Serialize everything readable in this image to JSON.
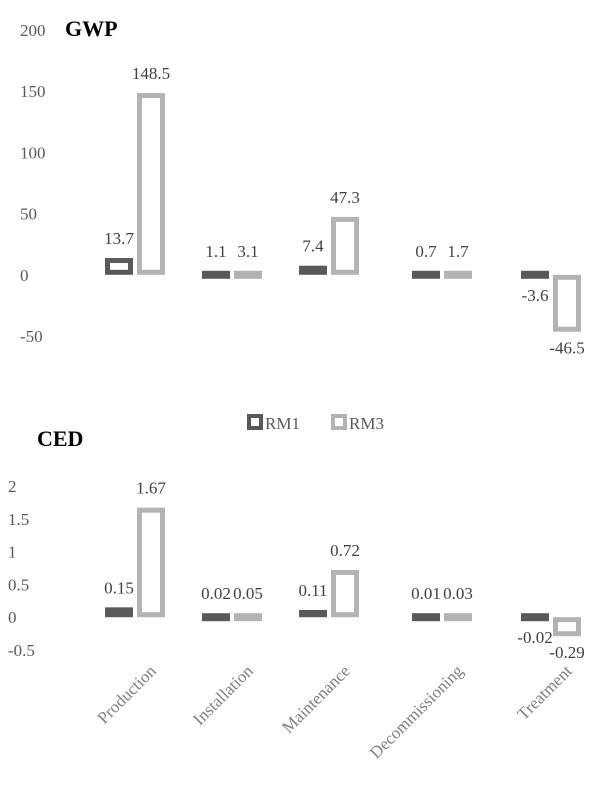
{
  "colors": {
    "RM1": "#595959",
    "RM3": "#b3b3b3"
  },
  "legend": [
    "RM1",
    "RM3"
  ],
  "categories": [
    "Production",
    "Installation",
    "Maintenance",
    "Decommissioning",
    "Treatment"
  ],
  "chart_data": [
    {
      "type": "bar",
      "title": "GWP",
      "categories": [
        "Production",
        "Installation",
        "Maintenance",
        "Decommissioning",
        "Treatment"
      ],
      "series": [
        {
          "name": "RM1",
          "values": [
            13.7,
            1.1,
            7.4,
            0.7,
            -3.6
          ],
          "labels": [
            "13.7",
            "1.1",
            "7.4",
            "0.7",
            "-3.6"
          ]
        },
        {
          "name": "RM3",
          "values": [
            148.5,
            3.1,
            47.3,
            1.7,
            -46.5
          ],
          "labels": [
            "148.5",
            "3.1",
            "47.3",
            "1.7",
            "-46.5"
          ]
        }
      ],
      "ylim": [
        -50,
        200
      ],
      "yticks": [
        "200",
        "150",
        "100",
        "50",
        "0",
        "-50"
      ],
      "grid": false
    },
    {
      "type": "bar",
      "title": "CED",
      "categories": [
        "Production",
        "Installation",
        "Maintenance",
        "Decommissioning",
        "Treatment"
      ],
      "series": [
        {
          "name": "RM1",
          "values": [
            0.15,
            0.02,
            0.11,
            0.01,
            -0.02
          ],
          "labels": [
            "0.15",
            "0.02",
            "0.11",
            "0.01",
            "-0.02"
          ]
        },
        {
          "name": "RM3",
          "values": [
            1.67,
            0.05,
            0.72,
            0.03,
            -0.29
          ],
          "labels": [
            "1.67",
            "0.05",
            "0.72",
            "0.03",
            "-0.29"
          ]
        }
      ],
      "ylim": [
        -0.5,
        2
      ],
      "yticks": [
        "2",
        "1.5",
        "1",
        "0.5",
        "0",
        "-0.5"
      ],
      "grid": false
    }
  ]
}
